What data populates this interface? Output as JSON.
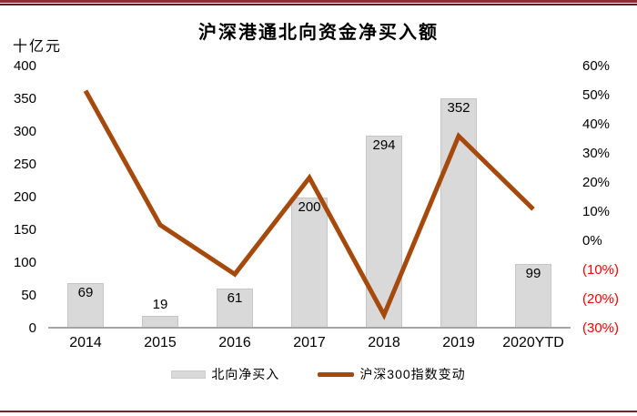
{
  "header": {
    "title": "沪深港通北向资金净买入额",
    "unit_label": "十亿元"
  },
  "legend": {
    "items": [
      {
        "label": "北向净买入",
        "swatch": "bar"
      },
      {
        "label": "沪深300指数变动",
        "swatch": "line"
      }
    ]
  },
  "colors": {
    "bar_fill": "#d9d9d9",
    "bar_border": "#c6c6c6",
    "line": "#a6490c",
    "negative_tick": "#ff0000",
    "axis_line": "#a6a6a6",
    "rule_maroon": "#7a222b",
    "text": "#000000"
  },
  "chart_data": {
    "type": "combo",
    "title": "沪深港通北向资金净买入额",
    "categories": [
      "2014",
      "2015",
      "2016",
      "2017",
      "2018",
      "2019",
      "2020YTD"
    ],
    "series": [
      {
        "name": "北向净买入",
        "type": "bar",
        "axis": "left",
        "values": [
          69,
          19,
          61,
          200,
          294,
          352,
          99
        ],
        "data_labels": [
          "69",
          "19",
          "61",
          "200",
          "294",
          "352",
          "99"
        ]
      },
      {
        "name": "沪深300指数变动",
        "type": "line",
        "axis": "right",
        "values_percent": [
          51.7,
          5.6,
          -11.3,
          21.8,
          -25.3,
          36.1,
          11.0
        ]
      }
    ],
    "left_axis": {
      "label": "十亿元",
      "range": [
        0,
        400
      ],
      "ticks": [
        400,
        350,
        300,
        250,
        200,
        150,
        100,
        50,
        0
      ]
    },
    "right_axis": {
      "range": [
        -30,
        60
      ],
      "ticks": [
        {
          "label": "60%",
          "value": 60,
          "negative": false
        },
        {
          "label": "50%",
          "value": 50,
          "negative": false
        },
        {
          "label": "40%",
          "value": 40,
          "negative": false
        },
        {
          "label": "30%",
          "value": 30,
          "negative": false
        },
        {
          "label": "20%",
          "value": 20,
          "negative": false
        },
        {
          "label": "10%",
          "value": 10,
          "negative": false
        },
        {
          "label": "0%",
          "value": 0,
          "negative": false
        },
        {
          "label": "(10%)",
          "value": -10,
          "negative": true
        },
        {
          "label": "(20%)",
          "value": -20,
          "negative": true
        },
        {
          "label": "(30%)",
          "value": -30,
          "negative": true
        }
      ]
    },
    "grid": false,
    "legend_position": "bottom"
  }
}
